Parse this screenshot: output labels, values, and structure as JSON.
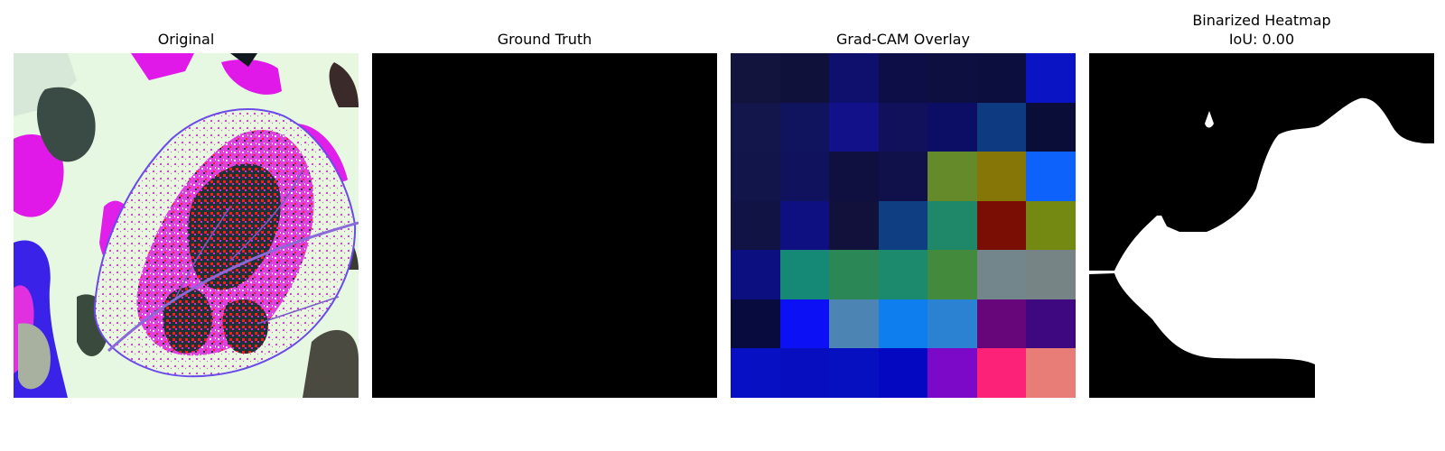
{
  "panels": {
    "original": {
      "title": "Original"
    },
    "ground_truth": {
      "title": "Ground Truth"
    },
    "gradcam": {
      "title": "Grad-CAM Overlay",
      "grid_colors": [
        [
          "#12143e",
          "#10113a",
          "#0f0f6e",
          "#0d0e48",
          "#0c0f40",
          "#0c0e3d",
          "#0b14c4"
        ],
        [
          "#13164a",
          "#10135e",
          "#12118a",
          "#11105a",
          "#0b0e64",
          "#0d3a80",
          "#0a0d38"
        ],
        [
          "#12154a",
          "#11125e",
          "#101040",
          "#10104a",
          "#658a2a",
          "#867608",
          "#0c62fb"
        ],
        [
          "#111345",
          "#0e0f80",
          "#11113c",
          "#0f3e82",
          "#1e8869",
          "#7a0d04",
          "#748912"
        ],
        [
          "#0c0f80",
          "#168876",
          "#2b8856",
          "#1c8a6d",
          "#438a3c",
          "#73868c",
          "#768486"
        ],
        [
          "#070b3d",
          "#0c10f4",
          "#4c84b4",
          "#0e7eef",
          "#2c82d2",
          "#67067a",
          "#3d0880"
        ],
        [
          "#0810c4",
          "#070ec0",
          "#0710c0",
          "#0408c0",
          "#7c08c8",
          "#fc2278",
          "#e87d78"
        ]
      ]
    },
    "binarized": {
      "title": "Binarized Heatmap",
      "subtitle": "IoU: 0.00"
    }
  }
}
